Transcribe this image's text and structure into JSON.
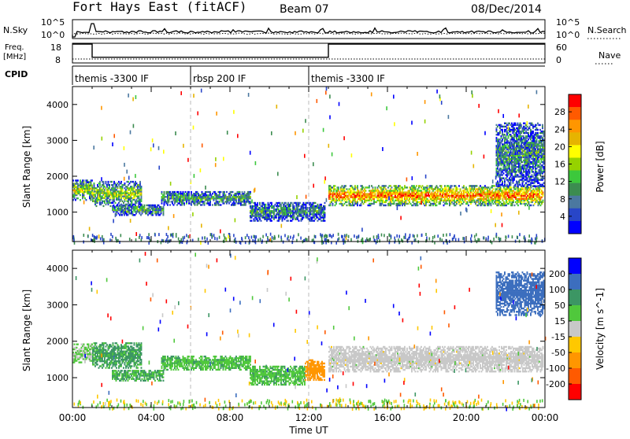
{
  "header": {
    "station": "Fort Hays East (fitACF)",
    "beam": "Beam 07",
    "date": "08/Dec/2014"
  },
  "chart_data": [
    {
      "type": "line",
      "panel": "noise",
      "left_label": "N.Sky",
      "right_label": "N.Search",
      "left_ticks": [
        "10^5",
        "10^0"
      ],
      "right_ticks": [
        "10^5",
        "10^0"
      ]
    },
    {
      "type": "line",
      "panel": "frequency",
      "left_label_line1": "Freq.",
      "left_label_line2": "[MHz]",
      "right_label": "Nave",
      "left_ticks": [
        "18",
        "8"
      ],
      "right_ticks": [
        "60",
        "0"
      ],
      "freq_steps": [
        [
          0,
          18
        ],
        [
          1,
          11
        ],
        [
          13,
          18
        ],
        [
          24,
          18
        ]
      ],
      "nave_level": 12
    },
    {
      "type": "table",
      "panel": "cpid",
      "label": "CPID",
      "segments": [
        {
          "start": 0,
          "name": "themis -3300 IF"
        },
        {
          "start": 6,
          "name": "rbsp 200 IF"
        },
        {
          "start": 12,
          "name": "themis -3300 IF"
        }
      ]
    },
    {
      "type": "heatmap",
      "panel": "power",
      "ylabel": "Slant Range [km]",
      "yticks": [
        "4000",
        "3000",
        "2000",
        "1000"
      ],
      "ylim": [
        180,
        4500
      ],
      "xlim": [
        0,
        24
      ],
      "colorbar_label": "Power [dB]",
      "colorbar_ticks": [
        "28",
        "24",
        "20",
        "16",
        "12",
        "8",
        "4"
      ],
      "colorbar_colors": [
        "#ff0000",
        "#ff5a00",
        "#ff9600",
        "#e6b400",
        "#ffff00",
        "#96d200",
        "#3cc83c",
        "#3c8c50",
        "#4b78a0",
        "#2846c8",
        "#0000ff"
      ],
      "bands": [
        {
          "t0": 0.0,
          "t1": 1.0,
          "r_center": 1600,
          "r_half": 280,
          "level": 0.55
        },
        {
          "t0": 1.0,
          "t1": 3.5,
          "r_center": 1500,
          "r_half": 350,
          "level": 0.5
        },
        {
          "t0": 2.0,
          "t1": 4.6,
          "r_center": 1050,
          "r_half": 150,
          "level": 0.35
        },
        {
          "t0": 4.5,
          "t1": 9.0,
          "r_center": 1380,
          "r_half": 200,
          "level": 0.35
        },
        {
          "t0": 9.0,
          "t1": 12.8,
          "r_center": 1000,
          "r_half": 260,
          "level": 0.3
        },
        {
          "t0": 13.0,
          "t1": 23.9,
          "r_center": 1450,
          "r_half": 280,
          "level": 0.85
        },
        {
          "t0": 21.5,
          "t1": 23.9,
          "r_center": 2600,
          "r_half": 900,
          "level": 0.3
        }
      ]
    },
    {
      "type": "heatmap",
      "panel": "velocity",
      "ylabel": "Slant Range [km]",
      "yticks": [
        "4000",
        "3000",
        "2000",
        "1000"
      ],
      "ylim": [
        180,
        4500
      ],
      "xlim": [
        0,
        24
      ],
      "colorbar_label": "Velocity [m s^-1]",
      "colorbar_ticks": [
        "200",
        "100",
        "50",
        "15",
        "-15",
        "-50",
        "-100",
        "-200"
      ],
      "colorbar_colors": [
        "#0000ff",
        "#3c6ebe",
        "#3c9664",
        "#50c83c",
        "#c8c8c8",
        "#ffc800",
        "#ff9600",
        "#ff5a00",
        "#ff0000"
      ],
      "bands": [
        {
          "t0": 0.0,
          "t1": 1.0,
          "r_center": 1650,
          "r_half": 250,
          "vel": 15
        },
        {
          "t0": 1.0,
          "t1": 3.5,
          "r_center": 1600,
          "r_half": 350,
          "vel": 60
        },
        {
          "t0": 2.0,
          "t1": 4.6,
          "r_center": 1050,
          "r_half": 150,
          "vel": 50
        },
        {
          "t0": 4.5,
          "t1": 9.0,
          "r_center": 1400,
          "r_half": 200,
          "vel": 40
        },
        {
          "t0": 9.0,
          "t1": 11.8,
          "r_center": 1050,
          "r_half": 260,
          "vel": 40
        },
        {
          "t0": 11.8,
          "t1": 12.8,
          "r_center": 1200,
          "r_half": 280,
          "vel": -80
        },
        {
          "t0": 13.0,
          "t1": 23.9,
          "r_center": 1500,
          "r_half": 350,
          "vel": 0
        },
        {
          "t0": 21.5,
          "t1": 23.9,
          "r_center": 3300,
          "r_half": 600,
          "vel": 150
        }
      ]
    }
  ],
  "xaxis": {
    "label": "Time UT",
    "ticks": [
      "00:00",
      "04:00",
      "08:00",
      "12:00",
      "16:00",
      "20:00",
      "00:00"
    ],
    "tick_hours": [
      0,
      4,
      8,
      12,
      16,
      20,
      24
    ],
    "cpid_change_hours": [
      6,
      12
    ]
  }
}
